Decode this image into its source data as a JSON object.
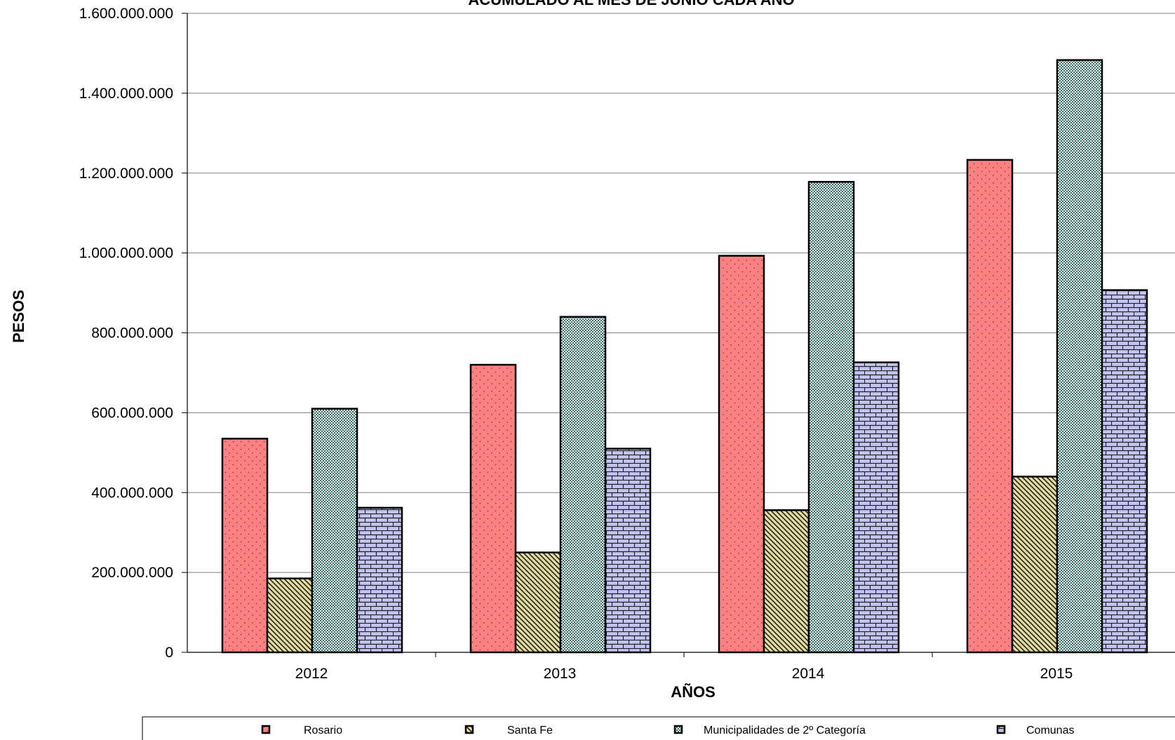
{
  "chart_data": {
    "type": "bar",
    "title": "ACUMULADO AL MES DE JUNIO CADA AÑO",
    "xlabel": "AÑOS",
    "ylabel": "PESOS",
    "categories": [
      "2012",
      "2013",
      "2014",
      "2015"
    ],
    "ylim": [
      0,
      1600000000
    ],
    "yticks": [
      0,
      200000000,
      400000000,
      600000000,
      800000000,
      1000000000,
      1200000000,
      1400000000,
      1600000000
    ],
    "ytick_labels": [
      "0",
      "200.000.000",
      "400.000.000",
      "600.000.000",
      "800.000.000",
      "1.000.000.000",
      "1.200.000.000",
      "1.400.000.000",
      "1.600.000.000"
    ],
    "grid": true,
    "legend_position": "bottom",
    "series": [
      {
        "name": "Rosario",
        "color": "#ff8080",
        "pattern": "dots",
        "values": [
          535000000,
          720000000,
          993000000,
          1233000000
        ]
      },
      {
        "name": "Santa Fe",
        "color": "#e3dc9b",
        "pattern": "diagonal",
        "values": [
          185000000,
          250000000,
          356000000,
          440000000
        ]
      },
      {
        "name": "Municipalidades de 2º Categoría",
        "color": "#cdeee8",
        "pattern": "checker",
        "values": [
          610000000,
          840000000,
          1178000000,
          1483000000
        ]
      },
      {
        "name": "Comunas",
        "color": "#c3c3f5",
        "pattern": "brick",
        "values": [
          362000000,
          510000000,
          726000000,
          907000000
        ]
      }
    ]
  }
}
